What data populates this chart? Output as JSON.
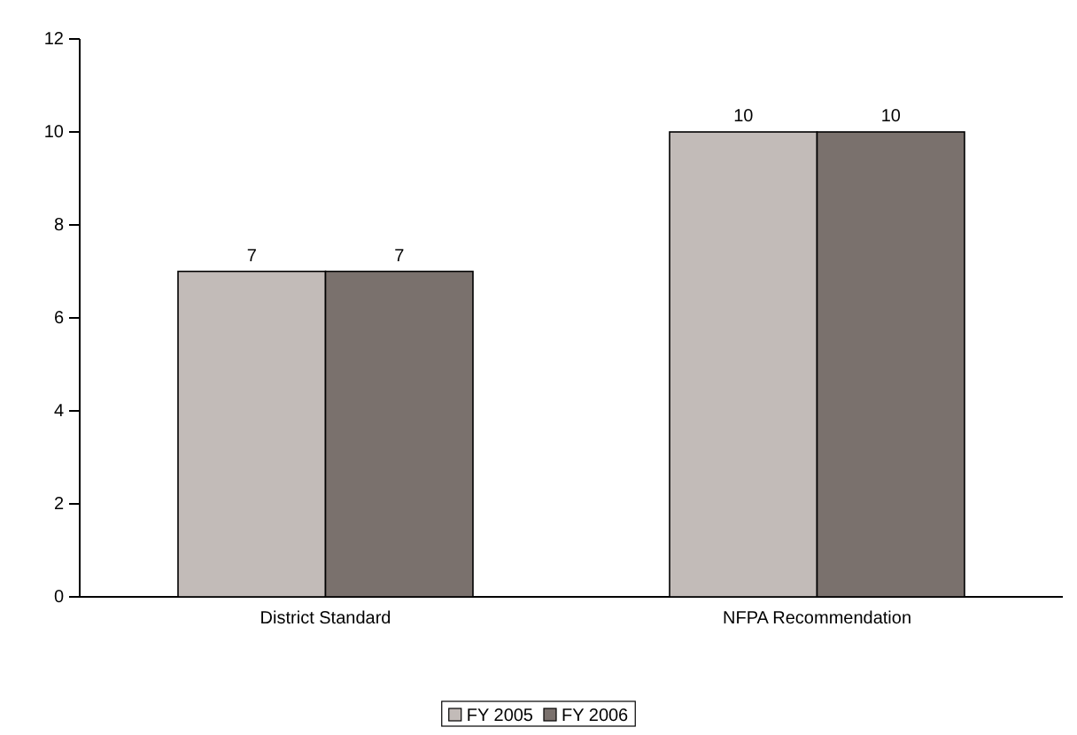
{
  "chart_data": {
    "type": "bar",
    "categories": [
      "District Standard",
      "NFPA Recommendation"
    ],
    "series": [
      {
        "name": "FY 2005",
        "color": "#c2bbb8",
        "values": [
          7,
          10
        ]
      },
      {
        "name": "FY 2006",
        "color": "#7a716d",
        "values": [
          7,
          10
        ]
      }
    ],
    "ylim": [
      0,
      12
    ],
    "yticks": [
      0,
      2,
      4,
      6,
      8,
      10,
      12
    ],
    "data_labels": true,
    "legend": "bottom",
    "grid": false
  }
}
